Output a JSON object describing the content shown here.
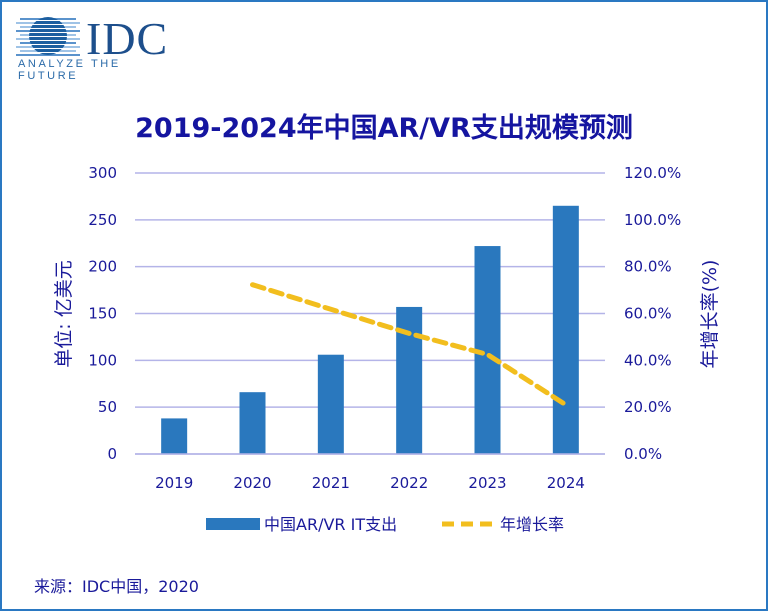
{
  "logo": {
    "text": "IDC",
    "tagline": "ANALYZE THE FUTURE"
  },
  "source": "来源：IDC中国，2020",
  "colors": {
    "bar": "#2a78be",
    "line": "#f2be1e",
    "grid": "#b4b4e8",
    "text": "#1a1a9a",
    "title": "#1515a0",
    "border": "#2a78c2"
  },
  "chart_data": {
    "type": "bar",
    "title": "2019-2024年中国AR/VR支出规模预测",
    "categories": [
      "2019",
      "2020",
      "2021",
      "2022",
      "2023",
      "2024"
    ],
    "ylabel": "单位: 亿美元",
    "y2label": "年增长率(%)",
    "ylim": [
      0,
      300
    ],
    "y2lim": [
      0,
      120
    ],
    "yticks": [
      "0",
      "50",
      "100",
      "150",
      "200",
      "250",
      "300"
    ],
    "y2ticks": [
      "0.0%",
      "20.0%",
      "40.0%",
      "60.0%",
      "80.0%",
      "100.0%",
      "120.0%"
    ],
    "grid": true,
    "legend_position": "bottom",
    "series": [
      {
        "name": "中国AR/VR IT支出",
        "type": "bar",
        "axis": "left",
        "values": [
          38,
          66,
          106,
          157,
          222,
          265
        ]
      },
      {
        "name": "年增长率",
        "type": "line",
        "style": "dashed",
        "axis": "right",
        "values": [
          null,
          72.3,
          61.8,
          51.5,
          42.5,
          21.0
        ]
      }
    ]
  }
}
